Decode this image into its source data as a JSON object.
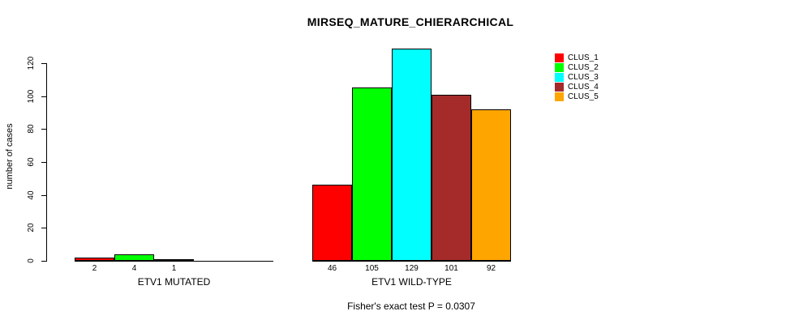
{
  "chart_data": {
    "type": "bar",
    "title": "MIRSEQ_MATURE_CHIERARCHICAL",
    "xlabel": "",
    "ylabel": "number of cases",
    "ylim": [
      0,
      120
    ],
    "yticks": [
      0,
      20,
      40,
      60,
      80,
      100,
      120
    ],
    "grid": false,
    "legend_position": "top-right",
    "categories": [
      "ETV1 MUTATED",
      "ETV1 WILD-TYPE"
    ],
    "series": [
      {
        "name": "CLUS_1",
        "color": "#FF0000",
        "values": [
          2,
          46
        ]
      },
      {
        "name": "CLUS_2",
        "color": "#00FF00",
        "values": [
          4,
          105
        ]
      },
      {
        "name": "CLUS_3",
        "color": "#00FFFF",
        "values": [
          1,
          129
        ]
      },
      {
        "name": "CLUS_4",
        "color": "#A52A2A",
        "values": [
          0,
          101
        ]
      },
      {
        "name": "CLUS_5",
        "color": "#FFA500",
        "values": [
          0,
          92
        ]
      }
    ],
    "bar_value_labels": {
      "ETV1 MUTATED": [
        "2",
        "4",
        "1"
      ],
      "ETV1 WILD-TYPE": [
        "46",
        "105",
        "129",
        "101",
        "92"
      ]
    },
    "annotation": "Fisher's exact test P = 0.0307"
  },
  "colors": {
    "background": "#FFFFFF",
    "axis": "#000000",
    "text": "#000000"
  }
}
